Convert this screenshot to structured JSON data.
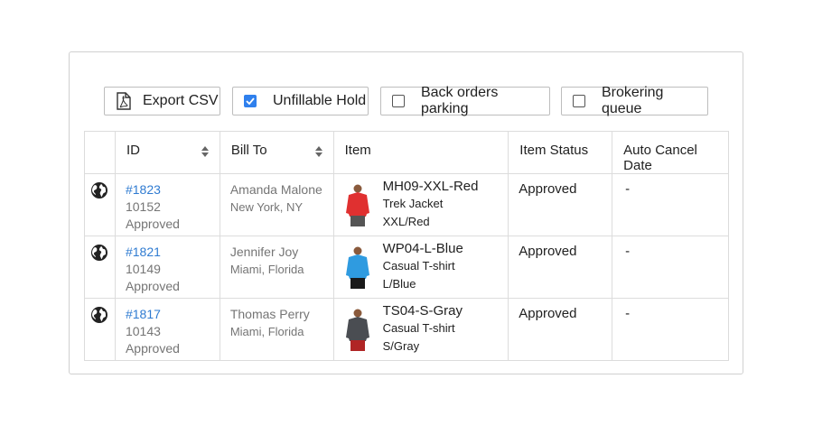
{
  "toolbar": {
    "export_label": "Export CSV",
    "filters": [
      {
        "label": "Unfillable Hold",
        "checked": true
      },
      {
        "label": "Back orders parking",
        "checked": false
      },
      {
        "label": "Brokering queue",
        "checked": false
      }
    ]
  },
  "table": {
    "headers": [
      "ID",
      "Bill To",
      "Item",
      "Item Status",
      "Auto Cancel Date"
    ],
    "rows": [
      {
        "id": "#1823",
        "number": "10152",
        "status": "Approved",
        "name": "Amanda Malone",
        "location": "New York, NY",
        "sku": "MH09-XXL-Red",
        "product": "Trek Jacket",
        "variant": "XXL/Red",
        "item_status": "Approved",
        "cancel_date": "-",
        "shirt_color": "#e03030",
        "pants_color": "#555555"
      },
      {
        "id": "#1821",
        "number": "10149",
        "status": "Approved",
        "name": "Jennifer Joy",
        "location": "Miami, Florida",
        "sku": "WP04-L-Blue",
        "product": "Casual T-shirt",
        "variant": "L/Blue",
        "item_status": "Approved",
        "cancel_date": "-",
        "shirt_color": "#2f9be0",
        "pants_color": "#1a1a1a"
      },
      {
        "id": "#1817",
        "number": "10143",
        "status": "Approved",
        "name": "Thomas Perry",
        "location": "Miami, Florida",
        "sku": "TS04-S-Gray",
        "product": "Casual T-shirt",
        "variant": "S/Gray",
        "item_status": "Approved",
        "cancel_date": "-",
        "shirt_color": "#4a4d52",
        "pants_color": "#b02525"
      }
    ]
  },
  "colors": {
    "accent": "#2f80ed",
    "link": "#2f7bd1"
  }
}
